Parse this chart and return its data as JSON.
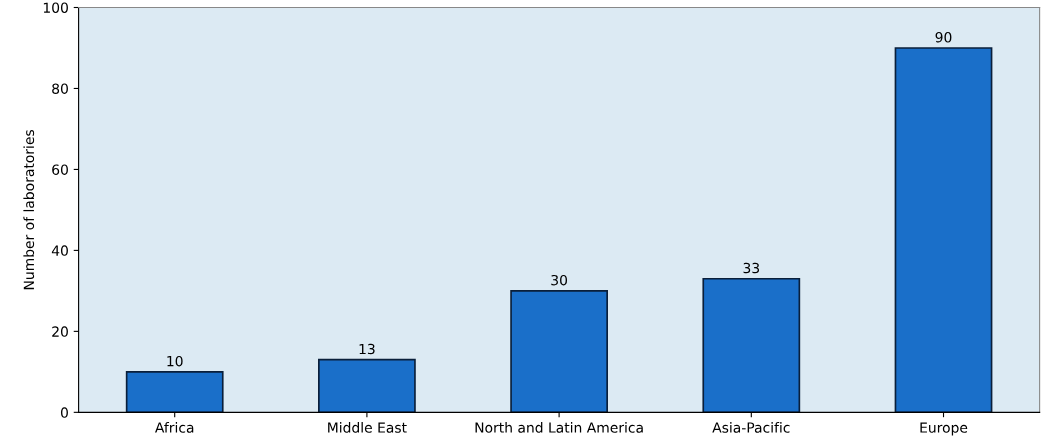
{
  "chart_data": {
    "type": "bar",
    "ylabel": "Number of laboratories",
    "categories": [
      "Africa",
      "Middle East",
      "North and Latin America",
      "Asia-Pacific",
      "Europe"
    ],
    "values": [
      10,
      13,
      30,
      33,
      90
    ],
    "color": "#1a6fc9",
    "ylim": [
      0,
      100
    ],
    "yticks": [
      0,
      20,
      40,
      60,
      80,
      100
    ],
    "data_labels": true,
    "grid": false
  }
}
